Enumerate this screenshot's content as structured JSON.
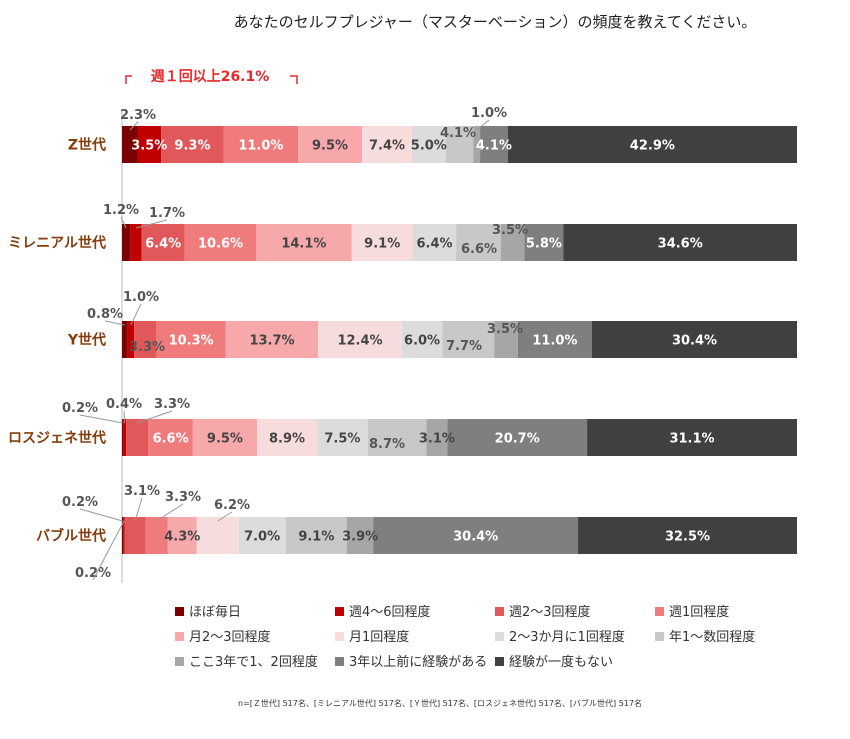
{
  "title": "あなたのセルフプレジャー（マスターベーション）の頻度を教えてください。",
  "bracket_label": "週１回以上26.1%",
  "note": "n=[Ｚ世代] 517名、[ミレニアル世代] 517名、[Ｙ世代] 517名、[ロスジェネ世代] 517名、[バブル世代] 517名",
  "colors": [
    "#7b0000",
    "#c00000",
    "#e0585a",
    "#f07b7d",
    "#f7a8aa",
    "#f7dcdd",
    "#dcdcdc",
    "#c8c8c8",
    "#a6a6a6",
    "#7f7f7f",
    "#404040"
  ],
  "chart_data": {
    "type": "bar",
    "orientation": "horizontal",
    "stacked": "percent",
    "categories": [
      "Z世代",
      "ミレニアル世代",
      "Y世代",
      "ロスジェネ世代",
      "バブル世代"
    ],
    "series": [
      {
        "name": "ほぼ毎日",
        "values": [
          2.3,
          1.2,
          0.8,
          0.2,
          0.2
        ]
      },
      {
        "name": "週4～6回程度",
        "values": [
          3.5,
          1.7,
          1.0,
          0.4,
          0.2
        ]
      },
      {
        "name": "週2～3回程度",
        "values": [
          9.3,
          6.4,
          3.3,
          3.3,
          3.1
        ]
      },
      {
        "name": "週1回程度",
        "values": [
          11.0,
          10.6,
          10.3,
          6.6,
          3.3
        ]
      },
      {
        "name": "月2～3回程度",
        "values": [
          9.5,
          14.1,
          13.7,
          9.5,
          4.3
        ]
      },
      {
        "name": "月1回程度",
        "values": [
          7.4,
          9.1,
          12.4,
          8.9,
          6.2
        ]
      },
      {
        "name": "2～3か月に1回程度",
        "values": [
          5.0,
          6.4,
          6.0,
          7.5,
          7.0
        ]
      },
      {
        "name": "年1～数回程度",
        "values": [
          4.1,
          6.6,
          7.7,
          8.7,
          9.1
        ]
      },
      {
        "name": "ここ3年で1、2回程度",
        "values": [
          1.0,
          3.5,
          3.5,
          3.1,
          3.9
        ]
      },
      {
        "name": "3年以上前に経験がある",
        "values": [
          4.1,
          5.8,
          11.0,
          20.7,
          30.4
        ]
      },
      {
        "name": "経験が一度もない",
        "values": [
          42.9,
          34.6,
          30.4,
          31.1,
          32.5
        ]
      }
    ],
    "labels": [
      [
        "2.3%",
        "3.5%",
        "9.3%",
        "11.0%",
        "9.5%",
        "7.4%",
        "5.0%",
        "4.1%",
        "1.0%",
        "4.1%",
        "42.9%"
      ],
      [
        "1.2%",
        "1.7%",
        "6.4%",
        "10.6%",
        "14.1%",
        "9.1%",
        "6.4%",
        "6.6%",
        "3.5%",
        "5.8%",
        "34.6%"
      ],
      [
        "0.8%",
        "1.0%",
        "3.3%",
        "10.3%",
        "13.7%",
        "12.4%",
        "6.0%",
        "7.7%",
        "3.5%",
        "11.0%",
        "30.4%"
      ],
      [
        "0.2%",
        "0.4%",
        "3.3%",
        "6.6%",
        "9.5%",
        "8.9%",
        "7.5%",
        "8.7%",
        "3.1%",
        "20.7%",
        "31.1%"
      ],
      [
        "0.2%",
        "0.2%",
        "3.1%",
        "3.3%",
        "4.3%",
        "6.2%",
        "7.0%",
        "9.1%",
        "3.9%",
        "30.4%",
        "32.5%"
      ]
    ],
    "xlim": [
      0,
      100
    ],
    "legend_position": "bottom"
  }
}
